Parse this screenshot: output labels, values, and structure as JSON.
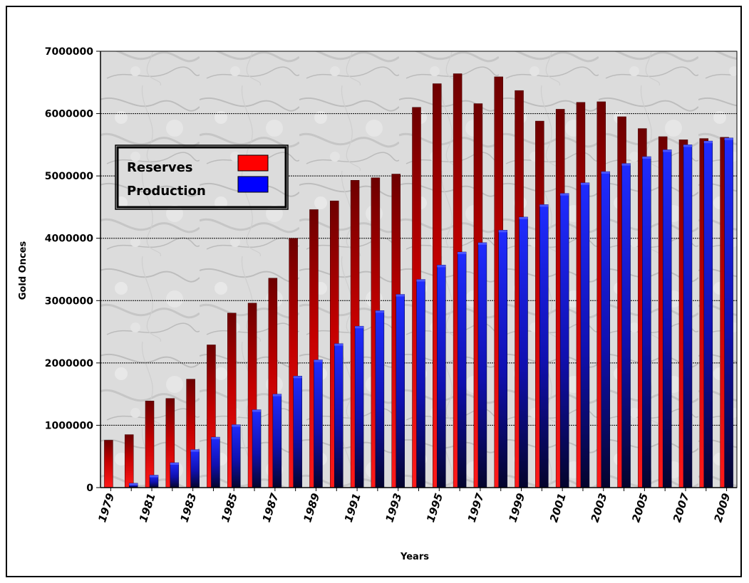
{
  "chart_data": {
    "type": "bar",
    "title": "",
    "xlabel": "Years",
    "ylabel": "Gold Onces",
    "ylim": [
      0,
      7000000
    ],
    "yticks": [
      0,
      1000000,
      2000000,
      3000000,
      4000000,
      5000000,
      6000000,
      7000000
    ],
    "grid": "horizontal",
    "legend_position": "upper-left",
    "categories": [
      "1979",
      "1980",
      "1981",
      "1982",
      "1983",
      "1984",
      "1985",
      "1986",
      "1987",
      "1988",
      "1989",
      "1990",
      "1991",
      "1992",
      "1993",
      "1994",
      "1995",
      "1996",
      "1997",
      "1998",
      "1999",
      "2000",
      "2001",
      "2002",
      "2003",
      "2004",
      "2005",
      "2006",
      "2007",
      "2008",
      "2009"
    ],
    "x_tick_labels": [
      "1979",
      "1981",
      "1983",
      "1985",
      "1987",
      "1989",
      "1991",
      "1993",
      "1995",
      "1997",
      "1999",
      "2001",
      "2003",
      "2005",
      "2007",
      "2009"
    ],
    "series": [
      {
        "name": "Reserves",
        "color": "#ff0000",
        "values": [
          760000,
          850000,
          1390000,
          1430000,
          1740000,
          2290000,
          2800000,
          2960000,
          3360000,
          4000000,
          4460000,
          4600000,
          4930000,
          4970000,
          5030000,
          6100000,
          6480000,
          6640000,
          6160000,
          6590000,
          6370000,
          5880000,
          6070000,
          6180000,
          6190000,
          5950000,
          5760000,
          5630000,
          5580000,
          5600000,
          5620000
        ]
      },
      {
        "name": "Production",
        "color": "#0000ff",
        "values": [
          0,
          70000,
          200000,
          400000,
          610000,
          810000,
          1010000,
          1250000,
          1500000,
          1790000,
          2050000,
          2310000,
          2590000,
          2840000,
          3100000,
          3340000,
          3570000,
          3780000,
          3930000,
          4130000,
          4340000,
          4540000,
          4720000,
          4890000,
          5070000,
          5200000,
          5310000,
          5420000,
          5500000,
          5560000,
          5610000
        ]
      }
    ]
  }
}
